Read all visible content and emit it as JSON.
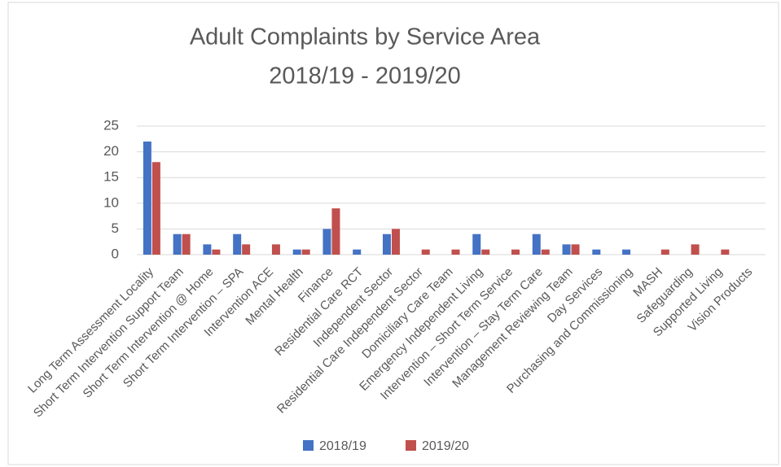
{
  "chart_data": {
    "type": "bar",
    "title": "Adult Complaints by Service Area",
    "subtitle": "2018/19 - 2019/20",
    "categories": [
      "Long Term Assessment Locality",
      "Short Term Intervention Support Team",
      "Short Term Intervention @ Home",
      "Short Term Intervention – SPA",
      "Intervention ACE",
      "Mental Health",
      "Finance",
      "Residential Care RCT",
      "Independent Sector",
      "Residential Care Independent Sector",
      "Domiciliary Care Team",
      "Emergency Independent Living",
      "Intervention – Short Term Service",
      "Intervention – Stay Term Care",
      "Management Reviewing Team",
      "Day Services",
      "Purchasing and Commissioning",
      "MASH",
      "Safeguarding",
      "Supported Living",
      "Vision Products"
    ],
    "series": [
      {
        "name": "2018/19",
        "color": "#4472c4",
        "values": [
          22,
          4,
          2,
          4,
          0,
          1,
          5,
          1,
          4,
          0,
          0,
          4,
          0,
          4,
          2,
          1,
          1,
          0,
          0,
          0,
          0
        ]
      },
      {
        "name": "2019/20",
        "color": "#c0504d",
        "values": [
          18,
          4,
          1,
          2,
          2,
          1,
          9,
          0,
          5,
          1,
          1,
          1,
          1,
          1,
          2,
          0,
          0,
          1,
          2,
          1,
          0
        ]
      }
    ],
    "ylim": [
      0,
      25
    ],
    "yticks": [
      0,
      5,
      10,
      15,
      20,
      25
    ],
    "grid": true,
    "legend": "bottom"
  }
}
